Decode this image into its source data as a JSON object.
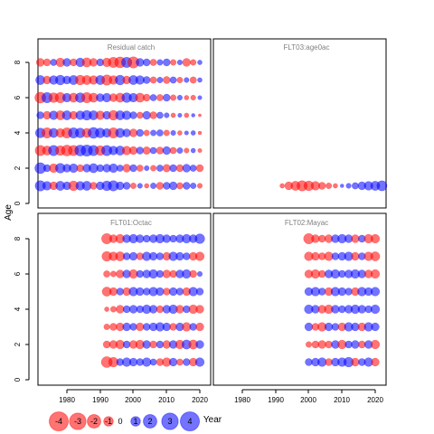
{
  "chart_data": {
    "type": "bubble",
    "ylabel": "Age",
    "xlabel": "Year",
    "xticks": [
      "1980",
      "1990",
      "2000",
      "2010",
      "2020"
    ],
    "yticks": [
      "0",
      "2",
      "4",
      "6",
      "8"
    ],
    "xlim": [
      1972,
      2023
    ],
    "ylim": [
      -0.4,
      8.8
    ],
    "colors": {
      "positive": "#0000ff",
      "negative": "#ff0000",
      "alpha": 0.55
    },
    "legend": {
      "entries": [
        {
          "label": "-4",
          "value": -4
        },
        {
          "label": "-3",
          "value": -3
        },
        {
          "label": "-2",
          "value": -2
        },
        {
          "label": "-1",
          "value": -1
        },
        {
          "label": "0",
          "value": 0
        },
        {
          "label": "1",
          "value": 1
        },
        {
          "label": "2",
          "value": 2
        },
        {
          "label": "3",
          "value": 3
        },
        {
          "label": "4",
          "value": 4
        }
      ]
    },
    "panels": [
      {
        "title": "Residual catch",
        "ages": [
          1,
          2,
          3,
          4,
          5,
          6,
          7,
          8
        ],
        "years": [
          1972,
          1974,
          1976,
          1978,
          1980,
          1982,
          1984,
          1986,
          1988,
          1990,
          1992,
          1994,
          1996,
          1998,
          2000,
          2002,
          2004,
          2006,
          2008,
          2010,
          2012,
          2014,
          2016,
          2018,
          2020
        ],
        "residuals": {
          "1": [
            2.5,
            1.8,
            -1.5,
            2.0,
            1.5,
            -2.2,
            1.8,
            2.0,
            -1.2,
            1.5,
            2.2,
            2.5,
            1.5,
            1.2,
            -0.8,
            0.6,
            -0.5,
            0.8,
            -1.2,
            1.2,
            1.5,
            -1.0,
            1.2,
            0.8,
            -0.6
          ],
          "2": [
            2.8,
            1.2,
            -1.8,
            2.2,
            1.5,
            1.8,
            -1.2,
            1.5,
            2.0,
            1.2,
            1.5,
            1.8,
            1.0,
            -1.5,
            1.2,
            -1.0,
            0.6,
            -0.8,
            1.0,
            -1.4,
            1.2,
            -1.2,
            1.5,
            1.0,
            -1.2
          ],
          "3": [
            -2.5,
            -2.0,
            2.5,
            -2.2,
            -2.8,
            -2.5,
            2.8,
            3.0,
            2.5,
            -2.2,
            2.5,
            1.8,
            2.0,
            -1.8,
            -1.5,
            1.2,
            -1.4,
            1.0,
            -1.2,
            1.5,
            -1.0,
            0.8,
            -0.6,
            0.5,
            -0.4
          ],
          "4": [
            2.2,
            -2.5,
            2.0,
            -1.8,
            -2.5,
            2.5,
            2.2,
            -2.0,
            2.8,
            2.2,
            1.8,
            -2.5,
            2.0,
            1.5,
            -1.5,
            1.2,
            -0.8,
            0.8,
            1.0,
            -0.8,
            0.6,
            -0.5,
            0.4,
            0.5,
            -0.3
          ],
          "5": [
            1.2,
            -1.5,
            1.8,
            -2.0,
            2.0,
            -1.5,
            1.8,
            2.2,
            2.0,
            -1.8,
            1.5,
            -2.2,
            2.0,
            1.8,
            1.2,
            -1.0,
            1.5,
            -1.2,
            1.0,
            0.6,
            -0.5,
            0.4,
            -0.5,
            0.3,
            -0.2
          ],
          "6": [
            -2.8,
            2.5,
            -2.2,
            -2.5,
            1.8,
            -2.0,
            2.2,
            -2.5,
            -2.0,
            1.5,
            1.8,
            -1.5,
            -2.0,
            2.2,
            1.8,
            -2.0,
            -1.2,
            1.0,
            -1.0,
            1.2,
            -0.8,
            0.6,
            -0.5,
            -0.6,
            0.4
          ],
          "7": [
            2.0,
            -1.5,
            1.8,
            2.2,
            1.5,
            2.0,
            -2.2,
            -2.0,
            -1.8,
            2.0,
            -2.5,
            -1.8,
            2.2,
            -1.5,
            2.0,
            1.8,
            1.2,
            -1.0,
            0.8,
            -1.2,
            1.0,
            -0.8,
            0.6,
            -1.0,
            0.5
          ],
          "8": [
            -1.5,
            -1.2,
            1.0,
            -1.8,
            1.5,
            -1.2,
            1.8,
            -2.0,
            -1.5,
            1.2,
            -1.8,
            -2.5,
            -2.8,
            2.5,
            -3.0,
            1.5,
            1.2,
            -1.0,
            0.8,
            1.2,
            -0.8,
            0.6,
            -1.5,
            -0.8,
            0.5
          ]
        }
      },
      {
        "title": "FLT03:age0ac",
        "ages": [
          1
        ],
        "years": [
          1992,
          1994,
          1996,
          1998,
          2000,
          2002,
          2004,
          2006,
          2008,
          2010,
          2012,
          2014,
          2016,
          2018,
          2020,
          2022
        ],
        "residuals": {
          "1": [
            -0.5,
            -1.5,
            -2.0,
            -2.5,
            -2.2,
            -1.8,
            -1.2,
            -0.8,
            -0.5,
            0.3,
            0.6,
            1.0,
            1.5,
            1.8,
            2.0,
            2.4
          ]
        }
      },
      {
        "title": "FLT01:Octac",
        "ages": [
          1,
          2,
          3,
          4,
          5,
          6,
          7,
          8
        ],
        "years": [
          1992,
          1994,
          1996,
          1998,
          2000,
          2002,
          2004,
          2006,
          2008,
          2010,
          2012,
          2014,
          2016,
          2018,
          2020
        ],
        "residuals": {
          "1": [
            -2.8,
            -2.2,
            1.2,
            1.8,
            1.5,
            1.2,
            1.8,
            1.0,
            -1.2,
            -1.8,
            1.5,
            -1.0,
            1.2,
            -1.5,
            1.8
          ],
          "2": [
            -1.2,
            -1.5,
            -1.8,
            1.2,
            -1.5,
            -1.8,
            1.5,
            -1.2,
            1.2,
            -1.5,
            1.5,
            -1.8,
            2.0,
            -2.0,
            1.5
          ],
          "3": [
            -0.8,
            -1.2,
            -1.5,
            1.5,
            1.2,
            -1.5,
            1.2,
            1.5,
            1.8,
            1.5,
            -1.2,
            1.5,
            -1.8,
            1.2,
            -1.5
          ],
          "4": [
            -0.5,
            -0.8,
            -1.5,
            1.2,
            1.5,
            1.2,
            1.8,
            1.5,
            -1.2,
            1.5,
            1.8,
            -1.5,
            1.2,
            -1.8,
            -1.5
          ],
          "5": [
            -2.0,
            -1.5,
            1.2,
            -1.5,
            1.8,
            1.5,
            1.2,
            1.8,
            1.5,
            -1.2,
            1.5,
            1.2,
            -1.5,
            1.8,
            1.2
          ],
          "6": [
            -1.0,
            -0.8,
            -1.5,
            1.5,
            -1.8,
            1.2,
            1.5,
            1.8,
            1.2,
            -1.5,
            -1.2,
            1.5,
            1.8,
            -1.2,
            0.6
          ],
          "7": [
            -2.2,
            -1.8,
            -2.0,
            1.2,
            1.5,
            -1.2,
            1.8,
            1.5,
            1.2,
            -1.5,
            1.8,
            1.5,
            1.2,
            -1.5,
            -1.8
          ],
          "8": [
            -2.5,
            -1.5,
            -1.8,
            1.5,
            1.8,
            1.5,
            1.2,
            1.5,
            1.8,
            1.5,
            1.2,
            1.5,
            1.8,
            1.5,
            2.2
          ]
        }
      },
      {
        "title": "FLT02:Mayac",
        "ages": [
          1,
          2,
          3,
          4,
          5,
          6,
          7,
          8
        ],
        "years": [
          2000,
          2002,
          2004,
          2006,
          2008,
          2010,
          2012,
          2014,
          2016,
          2018,
          2020
        ],
        "residuals": {
          "1": [
            1.2,
            1.5,
            1.8,
            -1.2,
            1.5,
            1.8,
            2.2,
            -1.5,
            1.2,
            1.8,
            -1.5
          ],
          "2": [
            -0.8,
            -1.2,
            -1.5,
            -1.2,
            1.5,
            -1.8,
            1.2,
            1.5,
            -1.2,
            1.5,
            -1.8
          ],
          "3": [
            1.5,
            -1.2,
            -1.8,
            1.5,
            1.2,
            -1.5,
            1.8,
            1.5,
            -1.5,
            1.8,
            1.5
          ],
          "4": [
            1.8,
            1.5,
            -1.5,
            -1.8,
            1.5,
            1.2,
            1.5,
            1.8,
            1.5,
            1.2,
            1.8
          ],
          "5": [
            1.5,
            1.8,
            1.2,
            -1.5,
            1.8,
            1.5,
            1.2,
            -1.5,
            1.8,
            1.5,
            1.8
          ],
          "6": [
            -1.5,
            -1.8,
            -1.2,
            1.5,
            1.8,
            1.2,
            1.5,
            1.8,
            1.5,
            -1.5,
            -1.8
          ],
          "7": [
            -1.8,
            -1.5,
            -1.2,
            -1.8,
            1.2,
            1.5,
            1.8,
            -1.5,
            1.2,
            -1.8,
            -2.0
          ],
          "8": [
            -2.5,
            -1.5,
            -1.2,
            -1.5,
            1.5,
            1.8,
            1.5,
            -1.5,
            1.2,
            -1.8,
            -1.8
          ]
        }
      }
    ]
  }
}
